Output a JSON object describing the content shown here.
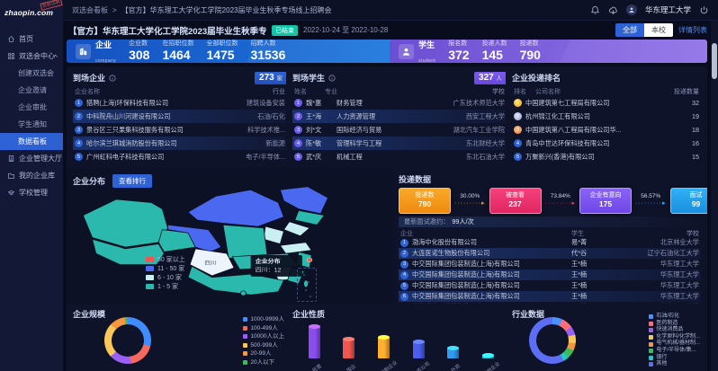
{
  "logo": {
    "text": "zhaopin.com",
    "stamp": "智联招聘"
  },
  "topbar": {
    "breadcrumb_root": "双选会看板",
    "breadcrumb_sep": ">",
    "breadcrumb_current": "【官方】华东理工大学化工学院2023届毕业生秋季专场线上招聘会",
    "school_name": "华东理工大学"
  },
  "sidebar": {
    "items": [
      {
        "name": "home",
        "label": "首页",
        "icon": "home",
        "type": "top"
      },
      {
        "name": "fair-center",
        "label": "双选会中心",
        "icon": "fair",
        "type": "top",
        "expanded": true
      },
      {
        "name": "create-fair",
        "label": "创建双选会",
        "type": "sub"
      },
      {
        "name": "company-invite",
        "label": "企业邀请",
        "type": "sub"
      },
      {
        "name": "company-approve",
        "label": "企业审批",
        "type": "sub"
      },
      {
        "name": "student-notify",
        "label": "学生通知",
        "type": "sub"
      },
      {
        "name": "data-dashboard",
        "label": "数据看板",
        "type": "sub",
        "active": true
      },
      {
        "name": "company-hall",
        "label": "企业管理大厅",
        "icon": "hall",
        "type": "top"
      },
      {
        "name": "my-company-library",
        "label": "我的企业库",
        "icon": "library",
        "type": "top"
      },
      {
        "name": "school-manage",
        "label": "学校管理",
        "icon": "school",
        "type": "top"
      }
    ]
  },
  "header": {
    "title": "【官方】华东理工大学化工学院2023届毕业生秋季专场线上...",
    "status_badge": "已结束",
    "date_range": "2022-10-24 至 2022-10-28",
    "filter_all": "全部",
    "filter_school": "本校",
    "detail_link": "详情列表"
  },
  "stats": {
    "company": {
      "label": "企业",
      "sublabel": "company",
      "items": [
        {
          "label": "企业数",
          "value": "308"
        },
        {
          "label": "在招职位数",
          "value": "1464"
        },
        {
          "label": "全部职位数",
          "value": "1475"
        },
        {
          "label": "招聘人数",
          "value": "31536"
        }
      ]
    },
    "student": {
      "label": "学生",
      "sublabel": "student",
      "items": [
        {
          "label": "报名数",
          "value": "372"
        },
        {
          "label": "投递人数",
          "value": "145"
        },
        {
          "label": "投递数",
          "value": "790"
        }
      ]
    }
  },
  "arrived_companies": {
    "title": "到场企业",
    "count": "273",
    "unit": "家",
    "columns": [
      "企业名称",
      "行业"
    ],
    "rows": [
      [
        "猎聘(上海)环保科技有限公司",
        "建筑设备安装"
      ],
      [
        "中科院舟山川河建设有限公司",
        "石油/石化"
      ],
      [
        "景谷区三只果集科技服务有限公司",
        "科学技术推..."
      ],
      [
        "哈尔滨兰琪城消防股份有限公司",
        "新能源"
      ],
      [
        "广州虹科电子科技有限公司",
        "电子/半导体..."
      ]
    ]
  },
  "arrived_students": {
    "title": "到场学生",
    "count": "327",
    "unit": "人",
    "columns": [
      "姓名",
      "专业",
      "学校"
    ],
    "rows": [
      [
        "魏*惠",
        "财务管理",
        "广东技术师范大学"
      ],
      [
        "王*海",
        "人力资源管理",
        "西安工程大学"
      ],
      [
        "刘*文",
        "国际经济与贸易",
        "湖北汽车工业学院"
      ],
      [
        "陈*敏",
        "管理科学与工程",
        "东北财经大学"
      ],
      [
        "武*庆",
        "机械工程",
        "东北石油大学"
      ]
    ]
  },
  "delivery_ranking": {
    "title": "企业投递排名",
    "columns": [
      "排名",
      "公司名称",
      "投递数量"
    ],
    "rows": [
      [
        "1",
        "中国建筑第七工程局有限公司",
        "32"
      ],
      [
        "2",
        "杭州锦江化工有限公司",
        "19"
      ],
      [
        "3",
        "中国建筑第八工程局有限公司华...",
        "18"
      ],
      [
        "4",
        "青岛中世达环保科技有限公司",
        "16"
      ],
      [
        "5",
        "万聚新兴(香港)有限公司",
        "15"
      ]
    ]
  },
  "company_distribution": {
    "title": "企业分布",
    "rank_button": "查看排行",
    "legend": [
      {
        "label": "50 家以上",
        "color": "#f0564f"
      },
      {
        "label": "11 - 50 家",
        "color": "#4a68f0"
      },
      {
        "label": "6 - 10 家",
        "color": "#c9eff2"
      },
      {
        "label": "1 - 5 家",
        "color": "#2bb8ad"
      }
    ],
    "tooltip_title": "企业分布",
    "tooltip_value": "四川：12",
    "province_label": "四川"
  },
  "delivery_data": {
    "title": "投递数据",
    "funnel": [
      {
        "label": "投递数",
        "value": "790"
      },
      {
        "label": "被查看",
        "value": "237"
      },
      {
        "label": "企业有意向",
        "value": "175"
      },
      {
        "label": "面试",
        "value": "99"
      }
    ],
    "rates": [
      "30.00%",
      "73.84%",
      "56.57%"
    ],
    "note_label": "最新面试邀约：",
    "note_value": "99人/次",
    "columns": [
      "企业",
      "学生",
      "学校"
    ],
    "rows": [
      [
        "渤海中化股份有限公司",
        "易*菁",
        "北京林业大学"
      ],
      [
        "大连医诺生物股份有限公司",
        "代*谷",
        "辽宁石油化工大学"
      ],
      [
        "中交国际集团包装制造(上海)有限公司",
        "王*楠",
        "华东理工大学"
      ],
      [
        "中交国际集团包装制造(上海)有限公司",
        "王*楠",
        "华东理工大学"
      ],
      [
        "中交国际集团包装制造(上海)有限公司",
        "王*楠",
        "华东理工大学"
      ],
      [
        "中交国际集团包装制造(上海)有限公司",
        "王*楠",
        "华东理工大学"
      ],
      [
        "上海雅仕石油精细化工有限公司",
        "冯*慧",
        "华东理工大学"
      ]
    ]
  },
  "chart_data": [
    {
      "type": "pie",
      "title": "企业规模",
      "labels": [
        "1000-9999人",
        "100-499人",
        "10000人以上",
        "500-999人",
        "20-99人",
        "20人以下"
      ],
      "values": [
        29,
        19,
        15,
        24,
        11,
        2
      ],
      "colors": [
        "#3f8cff",
        "#f3695f",
        "#9a60f6",
        "#fac858",
        "#f6973f",
        "#3fba5a"
      ],
      "legend_position": "right"
    },
    {
      "type": "bar",
      "title": "企业性质",
      "categories": [
        "民营",
        "国企",
        "股份制企业",
        "上市公司",
        "外资",
        "其他企业"
      ],
      "values": [
        75,
        46,
        50,
        40,
        26,
        8
      ],
      "colors": [
        "#8b4df0",
        "#f0564f",
        "#ffb02e",
        "#4a5df0",
        "#2f9bf0",
        "#29c8e6"
      ]
    },
    {
      "type": "pie",
      "title": "行业数据",
      "labels": [
        "石油/石化",
        "医药制造",
        "快速消费品",
        "化学原料/化学制...",
        "电气机械/器材制...",
        "电子/半导体/集...",
        "银行",
        "其他"
      ],
      "values": [
        7,
        8,
        6,
        6,
        5,
        6,
        4,
        58
      ],
      "colors": [
        "#4992ff",
        "#ff6e76",
        "#9a60f6",
        "#fac858",
        "#f6973f",
        "#3fba5a",
        "#2bc4c4",
        "#5b6ef5"
      ],
      "legend_position": "right"
    }
  ]
}
